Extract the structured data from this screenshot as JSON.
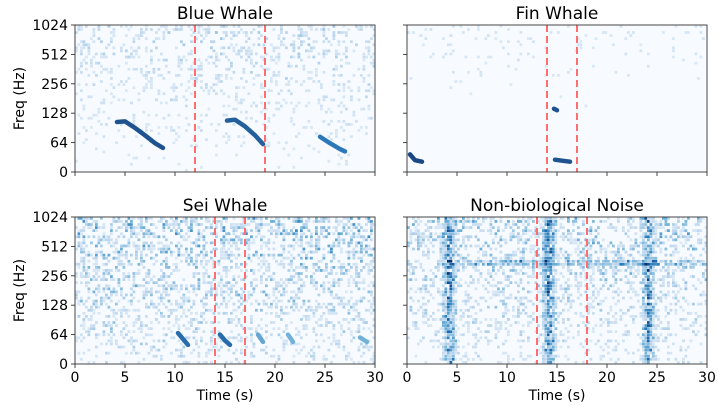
{
  "chart_data": [
    {
      "type": "heatmap",
      "title": "Blue Whale",
      "xlabel": "",
      "ylabel": "Freq (Hz)",
      "xlim": [
        0,
        30
      ],
      "yticks": [
        "0",
        "64",
        "128",
        "256",
        "512",
        "1024"
      ],
      "xticks": [
        "0",
        "5",
        "10",
        "15",
        "20",
        "25",
        "30"
      ],
      "show_xtick_labels": false,
      "show_ytick_labels": true,
      "colormap": "Blues",
      "marker_color": "#ff6e6e",
      "event_window": [
        12,
        19
      ],
      "noise_level": 0.18,
      "calls": [
        {
          "t": [
            4.2,
            5.0,
            6.0,
            7.0,
            8.0,
            8.8
          ],
          "f": [
            1.7,
            1.72,
            1.5,
            1.25,
            0.98,
            0.82
          ],
          "strength": 0.9
        },
        {
          "t": [
            15.2,
            16.0,
            17.0,
            18.0,
            18.8
          ],
          "f": [
            1.75,
            1.78,
            1.55,
            1.25,
            0.95
          ],
          "strength": 0.85
        },
        {
          "t": [
            24.5,
            25.5,
            26.5,
            27.0
          ],
          "f": [
            1.2,
            0.98,
            0.78,
            0.7
          ],
          "strength": 0.75
        }
      ]
    },
    {
      "type": "heatmap",
      "title": "Fin Whale",
      "xlabel": "",
      "ylabel": "",
      "xlim": [
        0,
        30
      ],
      "yticks": [
        "0",
        "64",
        "128",
        "256",
        "512",
        "1024"
      ],
      "xticks": [
        "0",
        "5",
        "10",
        "15",
        "20",
        "25",
        "30"
      ],
      "show_xtick_labels": false,
      "show_ytick_labels": false,
      "colormap": "Blues",
      "marker_color": "#ff6e6e",
      "event_window": [
        14,
        17
      ],
      "noise_level": 0.1,
      "calls": [
        {
          "t": [
            0.3,
            0.8,
            1.5
          ],
          "f": [
            0.6,
            0.4,
            0.35
          ],
          "strength": 0.95
        },
        {
          "t": [
            14.7,
            15.0
          ],
          "f": [
            2.15,
            2.1
          ],
          "strength": 0.9
        },
        {
          "t": [
            14.8,
            15.6,
            16.3
          ],
          "f": [
            0.42,
            0.38,
            0.35
          ],
          "strength": 0.9
        }
      ]
    },
    {
      "type": "heatmap",
      "title": "Sei Whale",
      "xlabel": "Time (s)",
      "ylabel": "Freq (Hz)",
      "xlim": [
        0,
        30
      ],
      "yticks": [
        "0",
        "64",
        "128",
        "256",
        "512",
        "1024"
      ],
      "xticks": [
        "0",
        "5",
        "10",
        "15",
        "20",
        "25",
        "30"
      ],
      "show_xtick_labels": true,
      "show_ytick_labels": true,
      "colormap": "Blues",
      "marker_color": "#ff6e6e",
      "event_window": [
        14,
        17
      ],
      "noise_level": 0.32,
      "calls": [
        {
          "t": [
            10.3,
            10.8,
            11.3
          ],
          "f": [
            1.05,
            0.85,
            0.65
          ],
          "strength": 0.8
        },
        {
          "t": [
            14.5,
            15.0,
            15.5
          ],
          "f": [
            1.0,
            0.8,
            0.65
          ],
          "strength": 0.8
        },
        {
          "t": [
            18.3,
            18.8
          ],
          "f": [
            1.0,
            0.75
          ],
          "strength": 0.55
        },
        {
          "t": [
            21.3,
            21.8
          ],
          "f": [
            1.0,
            0.75
          ],
          "strength": 0.5
        },
        {
          "t": [
            28.5,
            29.2
          ],
          "f": [
            0.9,
            0.75
          ],
          "strength": 0.5
        }
      ]
    },
    {
      "type": "heatmap",
      "title": "Non-biological Noise",
      "xlabel": "Time (s)",
      "ylabel": "",
      "xlim": [
        0,
        30
      ],
      "yticks": [
        "0",
        "64",
        "128",
        "256",
        "512",
        "1024"
      ],
      "xticks": [
        "0",
        "5",
        "10",
        "15",
        "20",
        "25",
        "30"
      ],
      "show_xtick_labels": true,
      "show_ytick_labels": false,
      "colormap": "Blues",
      "marker_color": "#ff6e6e",
      "event_window": [
        13,
        18
      ],
      "noise_level": 0.28,
      "bursts": [
        4.2,
        14.2,
        24.2
      ],
      "band_level": 3.45,
      "calls": []
    }
  ]
}
